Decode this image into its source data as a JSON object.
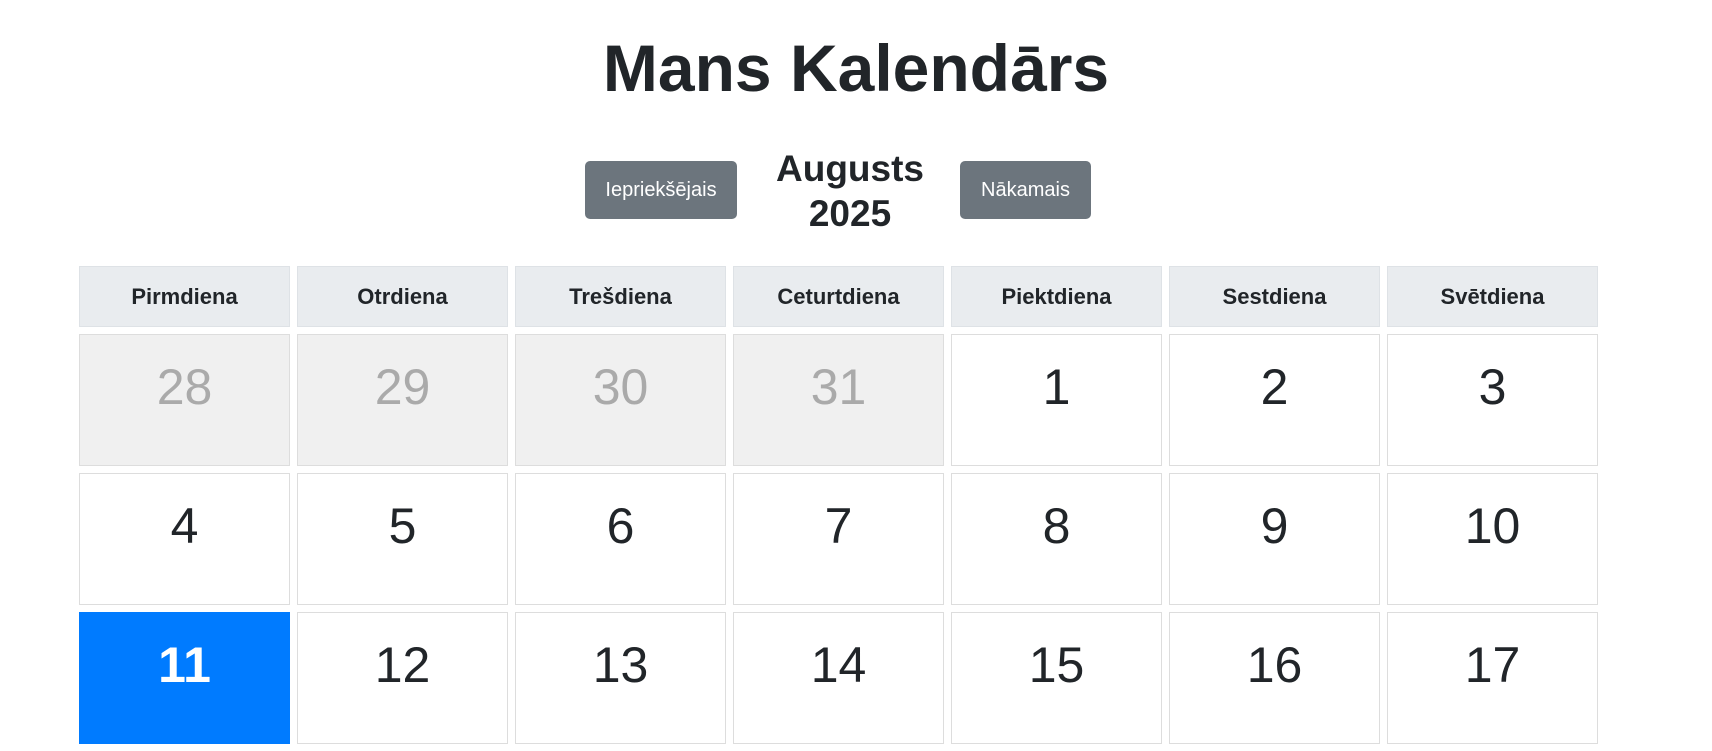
{
  "app": {
    "title": "Mans Kalendārs"
  },
  "nav": {
    "prev_label": "Iepriekšējais",
    "next_label": "Nākamais",
    "month": "Augusts",
    "year": "2025"
  },
  "weekdays": [
    "Pirmdiena",
    "Otrdiena",
    "Trešdiena",
    "Ceturtdiena",
    "Piektdiena",
    "Sestdiena",
    "Svētdiena"
  ],
  "weeks": [
    [
      "28",
      "29",
      "30",
      "31",
      "1",
      "2",
      "3"
    ],
    [
      "4",
      "5",
      "6",
      "7",
      "8",
      "9",
      "10"
    ],
    [
      "11",
      "12",
      "13",
      "14",
      "15",
      "16",
      "17"
    ]
  ],
  "colors": {
    "today": "#007bff",
    "other_month_bg": "#f0f0f0",
    "other_month_text": "#aaaaaa",
    "header_bg": "#e9ecef",
    "button_bg": "#6c757d"
  }
}
